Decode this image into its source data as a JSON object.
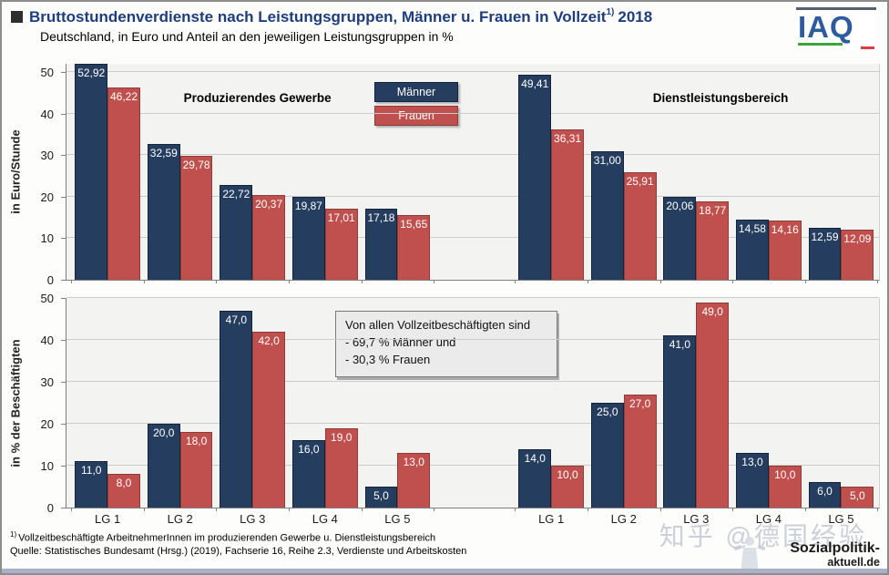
{
  "page": {
    "bottom_strip_color": "#A7B2C7"
  },
  "header": {
    "title_main": "Bruttostundenverdienste nach Leistungsgruppen, Männer u. Frauen in Vollzeit",
    "title_sup": "1)",
    "title_tail": "2018",
    "title_color": "#1E3D7D",
    "subtitle": "Deutschland, in Euro und Anteil an den jeweiligen Leistungsgruppen in %"
  },
  "logo_iaq": {
    "text": "IAQ",
    "letter_color": "#2D5B9E",
    "top_bar_color": "#56606C",
    "green_color": "#3DA43C",
    "red_color": "#E23B3F"
  },
  "legend": {
    "items": [
      {
        "label": "Männer",
        "color": "#253E60",
        "border": "#14243C"
      },
      {
        "label": "Frauen",
        "color": "#C0504D",
        "border": "#8F3B38"
      }
    ]
  },
  "chart_data": [
    {
      "type": "bar",
      "ylabel": "in Euro/Stunde",
      "ylim": [
        0,
        52
      ],
      "yticks": [
        0,
        10,
        20,
        30,
        40,
        50
      ],
      "grid": true,
      "legend_position": "top-center",
      "decimals": 2,
      "categories": [
        "LG 1",
        "LG 2",
        "LG 3",
        "LG 4",
        "LG 5"
      ],
      "show_xlabels": false,
      "groups": [
        {
          "name": "Produzierendes Gewerbe",
          "series": [
            {
              "name": "Männer",
              "values": [
                52.92,
                32.59,
                22.72,
                19.87,
                17.18
              ]
            },
            {
              "name": "Frauen",
              "values": [
                46.22,
                29.78,
                20.37,
                17.01,
                15.65
              ]
            }
          ]
        },
        {
          "name": "Dienstleistungsbereich",
          "series": [
            {
              "name": "Männer",
              "values": [
                49.41,
                31.0,
                20.06,
                14.58,
                12.59
              ]
            },
            {
              "name": "Frauen",
              "values": [
                36.31,
                25.91,
                18.77,
                14.16,
                12.09
              ]
            }
          ]
        }
      ]
    },
    {
      "type": "bar",
      "ylabel": "in % der Beschäftigten",
      "ylim": [
        0,
        50
      ],
      "yticks": [
        0,
        10,
        20,
        30,
        40,
        50
      ],
      "grid": true,
      "decimals": 1,
      "categories": [
        "LG 1",
        "LG 2",
        "LG 3",
        "LG 4",
        "LG 5"
      ],
      "show_xlabels": true,
      "groups": [
        {
          "name": "Produzierendes Gewerbe",
          "series": [
            {
              "name": "Männer",
              "values": [
                11.0,
                20.0,
                47.0,
                16.0,
                5.0
              ]
            },
            {
              "name": "Frauen",
              "values": [
                8.0,
                18.0,
                42.0,
                19.0,
                13.0
              ]
            }
          ]
        },
        {
          "name": "Dienstleistungsbereich",
          "series": [
            {
              "name": "Männer",
              "values": [
                14.0,
                25.0,
                41.0,
                13.0,
                6.0
              ]
            },
            {
              "name": "Frauen",
              "values": [
                10.0,
                27.0,
                49.0,
                10.0,
                5.0
              ]
            }
          ]
        }
      ]
    }
  ],
  "annotation": {
    "lines": [
      "Von allen Vollzeitbeschäftigten sind",
      "- 69,7 % Männer und",
      "- 30,3 % Frauen"
    ]
  },
  "footer": {
    "sup": "1)",
    "line1": "Vollzeitbeschäftigte ArbeitnehmerInnen im produzierenden Gewerbe u. Dienstleistungsbereich",
    "line2": "Quelle: Statistisches Bundesamt (Hrsg.) (2019), Fachserie 16, Reihe 2.3, Verdienste und Arbeitskosten"
  },
  "watermark": "知乎 @德国经验",
  "logo_sozialpolitik": {
    "line1": "Sozialpolitik-",
    "line2": "aktuell.de"
  }
}
